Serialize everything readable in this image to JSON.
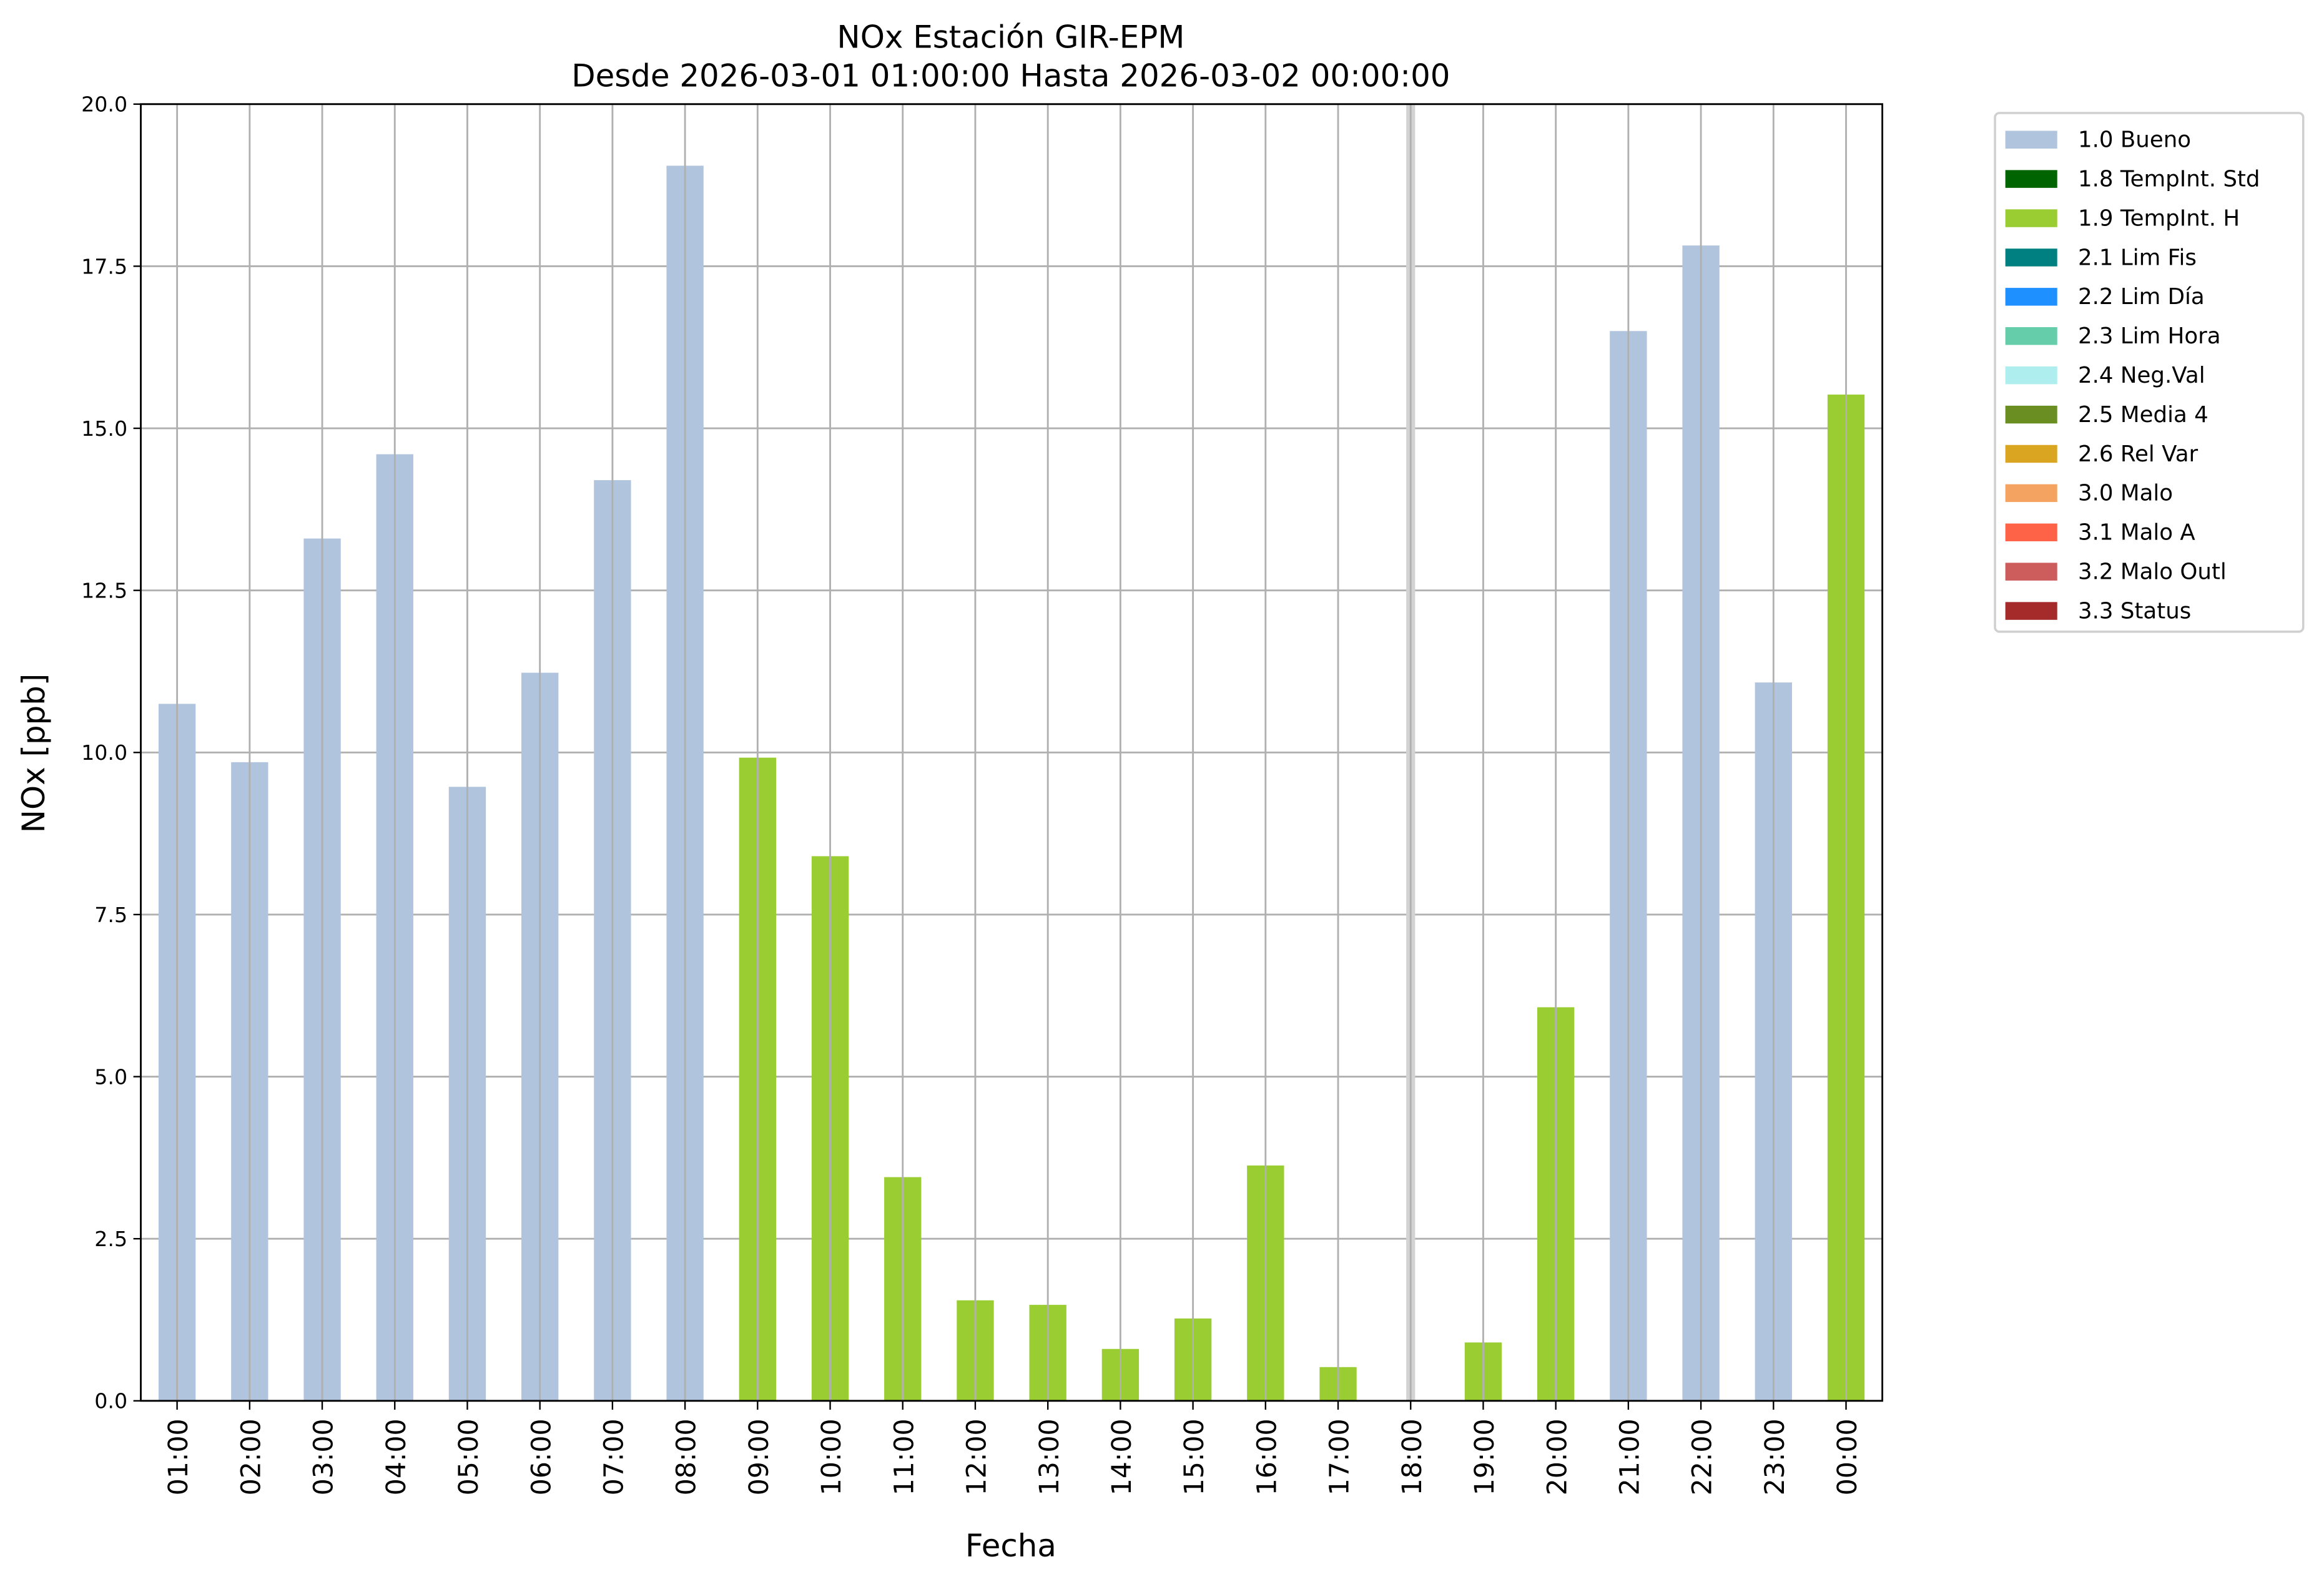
{
  "chart_data": {
    "type": "bar",
    "title": "NOx Estación GIR-EPM",
    "subtitle": "Desde 2026-03-01 01:00:00 Hasta 2026-03-02 00:00:00",
    "xlabel": "Fecha",
    "ylabel": "NOx [ppb]",
    "ylim": [
      0,
      20
    ],
    "yticks": [
      "0.0",
      "2.5",
      "5.0",
      "7.5",
      "10.0",
      "12.5",
      "15.0",
      "17.5",
      "20.0"
    ],
    "grid": true,
    "legend_position": "outside-top-right",
    "categories": [
      "01:00",
      "02:00",
      "03:00",
      "04:00",
      "05:00",
      "06:00",
      "07:00",
      "08:00",
      "09:00",
      "10:00",
      "11:00",
      "12:00",
      "13:00",
      "14:00",
      "15:00",
      "16:00",
      "17:00",
      "18:00",
      "19:00",
      "20:00",
      "21:00",
      "22:00",
      "23:00",
      "00:00"
    ],
    "values": [
      10.75,
      9.85,
      13.3,
      14.6,
      9.47,
      11.23,
      14.2,
      19.05,
      9.92,
      8.4,
      3.45,
      1.55,
      1.48,
      0.8,
      1.27,
      3.63,
      0.52,
      null,
      0.9,
      6.07,
      16.5,
      17.82,
      11.08,
      15.52
    ],
    "flags": [
      "1.0 Bueno",
      "1.0 Bueno",
      "1.0 Bueno",
      "1.0 Bueno",
      "1.0 Bueno",
      "1.0 Bueno",
      "1.0 Bueno",
      "1.0 Bueno",
      "1.9 TempInt. H",
      "1.9 TempInt. H",
      "1.9 TempInt. H",
      "1.9 TempInt. H",
      "1.9 TempInt. H",
      "1.9 TempInt. H",
      "1.9 TempInt. H",
      "1.9 TempInt. H",
      "1.9 TempInt. H",
      null,
      "1.9 TempInt. H",
      "1.9 TempInt. H",
      "1.0 Bueno",
      "1.0 Bueno",
      "1.0 Bueno",
      "1.9 TempInt. H"
    ],
    "missing_color": "#d3d3d3",
    "legend": [
      {
        "label": "1.0 Bueno",
        "color": "#b0c4de"
      },
      {
        "label": "1.8 TempInt. Std",
        "color": "#006400"
      },
      {
        "label": "1.9 TempInt. H",
        "color": "#9acd32"
      },
      {
        "label": "2.1 Lim Fis",
        "color": "#008080"
      },
      {
        "label": "2.2 Lim Día",
        "color": "#1e90ff"
      },
      {
        "label": "2.3 Lim Hora",
        "color": "#66cdaa"
      },
      {
        "label": "2.4 Neg.Val",
        "color": "#afeeee"
      },
      {
        "label": "2.5 Media 4",
        "color": "#6b8e23"
      },
      {
        "label": "2.6 Rel Var",
        "color": "#daa520"
      },
      {
        "label": "3.0 Malo",
        "color": "#f4a460"
      },
      {
        "label": "3.1 Malo A",
        "color": "#ff6347"
      },
      {
        "label": "3.2 Malo Outl",
        "color": "#cd5c5c"
      },
      {
        "label": "3.3 Status",
        "color": "#a52a2a"
      }
    ]
  }
}
